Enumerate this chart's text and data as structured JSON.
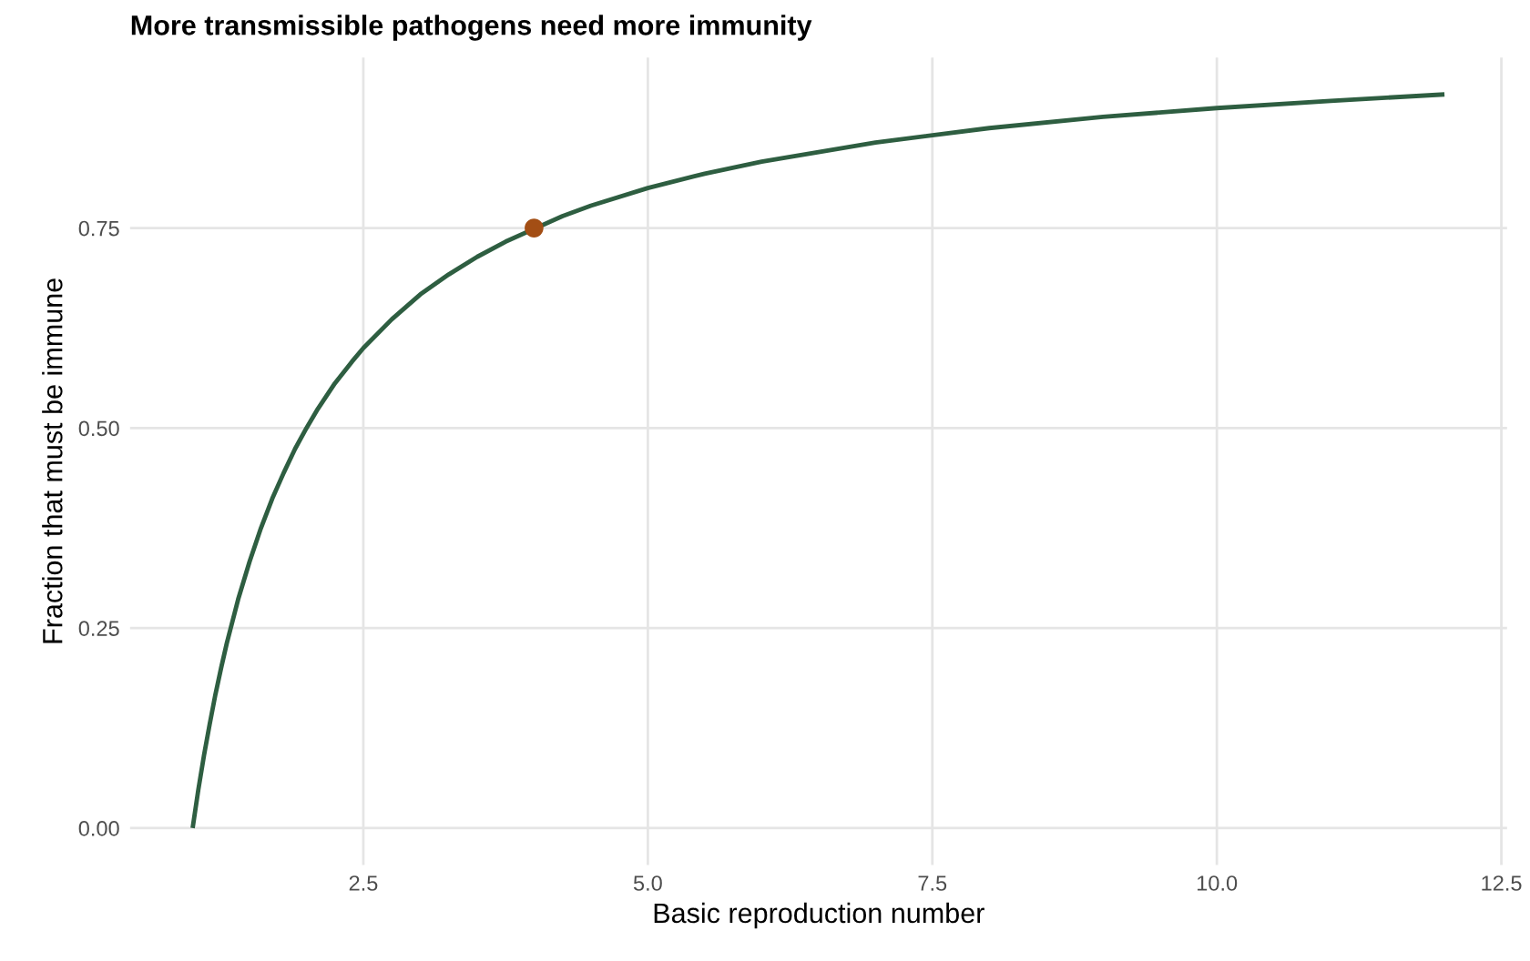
{
  "chart_data": {
    "type": "line",
    "title": "More transmissible pathogens need more immunity",
    "xlabel": "Basic reproduction number",
    "ylabel": "Fraction that must be immune",
    "series": [
      {
        "color": "#2e5e41",
        "x": [
          1,
          1.05,
          1.1,
          1.15,
          1.2,
          1.25,
          1.3,
          1.4,
          1.5,
          1.6,
          1.7,
          1.8,
          1.9,
          2,
          2.1,
          2.25,
          2.4,
          2.5,
          2.75,
          3,
          3.25,
          3.5,
          3.75,
          4.25,
          4.5,
          5,
          5.5,
          6,
          7,
          8,
          9,
          10,
          11,
          12
        ],
        "values": [
          0,
          0.048,
          0.091,
          0.13,
          0.167,
          0.2,
          0.231,
          0.286,
          0.333,
          0.375,
          0.412,
          0.444,
          0.474,
          0.5,
          0.524,
          0.556,
          0.583,
          0.6,
          0.636,
          0.667,
          0.692,
          0.714,
          0.733,
          0.765,
          0.778,
          0.8,
          0.818,
          0.833,
          0.857,
          0.875,
          0.889,
          0.9,
          0.909,
          0.917
        ]
      },
      {
        "type": "scatter",
        "color": "#a34e14",
        "x": [
          4
        ],
        "values": [
          0.75
        ]
      }
    ],
    "xlim": [
      0.45,
      12.55
    ],
    "xticks": [
      {
        "value": 2.5,
        "label": "2.5"
      },
      {
        "value": 5,
        "label": "5.0"
      },
      {
        "value": 7.5,
        "label": "7.5"
      },
      {
        "value": 10,
        "label": "10.0"
      },
      {
        "value": 12.5,
        "label": "12.5"
      }
    ],
    "ylim": [
      -0.046,
      0.963
    ],
    "yticks": [
      {
        "value": 0,
        "label": "0.00"
      },
      {
        "value": 0.25,
        "label": "0.25"
      },
      {
        "value": 0.5,
        "label": "0.50"
      },
      {
        "value": 0.75,
        "label": "0.75"
      }
    ],
    "grid": true,
    "legend": false
  }
}
